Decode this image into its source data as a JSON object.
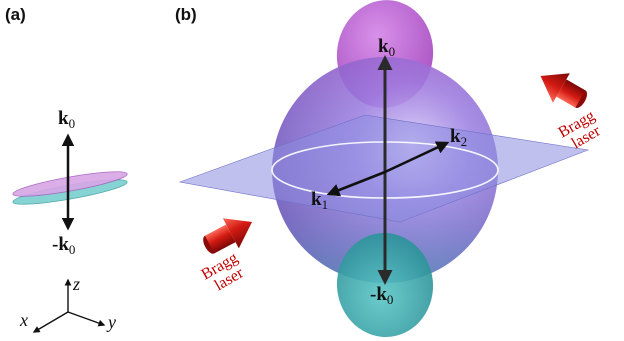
{
  "panels": {
    "a": "(a)",
    "b": "(b)"
  },
  "vectors": {
    "k0_symbol": "k",
    "k0_sub": "0",
    "neg_k0_prefix": "-",
    "k1_symbol": "k",
    "k1_sub": "1",
    "k2_symbol": "k",
    "k2_sub": "2"
  },
  "axes": {
    "x": "x",
    "y": "y",
    "z": "z"
  },
  "bragg_laser": {
    "line1": "Bragg",
    "line2": "laser"
  },
  "colors": {
    "sphere": "#8a6fd6",
    "top_lobe": "#b04bc9",
    "bottom_lobe": "#2fa7a8",
    "plane": "#8c8ce0",
    "laser": "#c81010",
    "label_red": "#c00000"
  }
}
